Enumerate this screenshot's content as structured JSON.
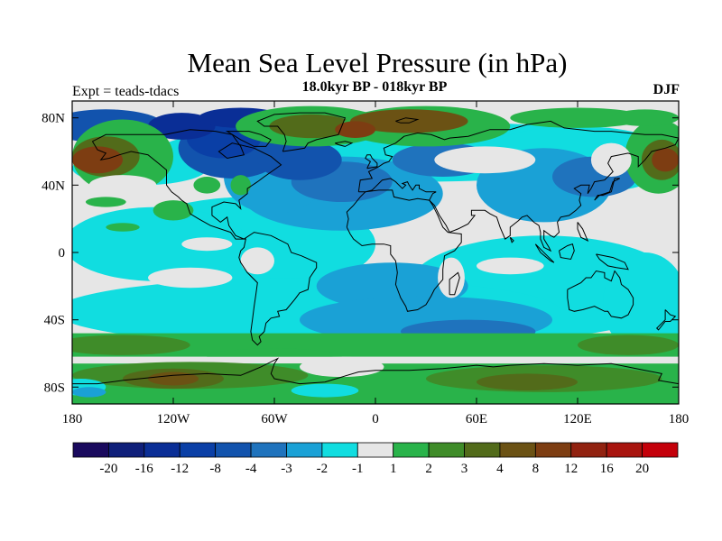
{
  "title": "Mean Sea Level Pressure (in hPa)",
  "subtitle": "18.0kyr BP - 018kyr BP",
  "left_label": "Expt = teads-tdacs",
  "season": "DJF",
  "map": {
    "projection": "cylindrical-equidistant",
    "lon_range": [
      -180,
      180
    ],
    "lat_range": [
      -90,
      90
    ],
    "lon_ticks": [
      {
        "value": -180,
        "label": "180"
      },
      {
        "value": -120,
        "label": "120W"
      },
      {
        "value": -60,
        "label": "60W"
      },
      {
        "value": 0,
        "label": "0"
      },
      {
        "value": 60,
        "label": "60E"
      },
      {
        "value": 120,
        "label": "120E"
      },
      {
        "value": 180,
        "label": "180"
      }
    ],
    "lat_ticks": [
      {
        "value": 80,
        "label": "80N"
      },
      {
        "value": 40,
        "label": "40N"
      },
      {
        "value": 0,
        "label": "0"
      },
      {
        "value": -40,
        "label": "40S"
      },
      {
        "value": -80,
        "label": "80S"
      }
    ]
  },
  "colorbar": {
    "colors": [
      "#1a0a5e",
      "#0f1f7a",
      "#0a2e96",
      "#0a3fa6",
      "#1253ad",
      "#1f73bd",
      "#1aa1d6",
      "#11dde0",
      "#e6e6e6",
      "#29b34a",
      "#3f8c29",
      "#526b1a",
      "#6b5214",
      "#7d3d12",
      "#912210",
      "#a8140e",
      "#c4000a"
    ],
    "labels": [
      "-20",
      "-16",
      "-12",
      "-8",
      "-4",
      "-3",
      "-2",
      "-1",
      "1",
      "2",
      "3",
      "4",
      "8",
      "12",
      "16",
      "20"
    ]
  },
  "colors": {
    "neutral": "#e6e6e6",
    "light_cyan": "#11dde0",
    "cyan_blue": "#1aa1d6",
    "mid_blue": "#1f73bd",
    "blue": "#1253ad",
    "dark_blue": "#0a3fa6",
    "navy": "#0a2e96",
    "green": "#29b34a",
    "dark_green": "#3f8c29",
    "olive": "#526b1a",
    "brown": "#6b5214",
    "dark_brown": "#7d3d12",
    "coast": "#000000"
  }
}
